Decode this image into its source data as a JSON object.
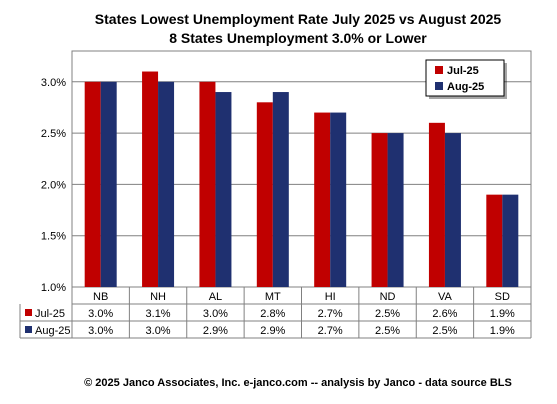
{
  "chart_data": {
    "type": "bar",
    "title": "States Lowest Unemployment Rate July 2025 vs August 2025",
    "subtitle": "8 States  Unemployment 3.0% or Lower",
    "categories": [
      "NB",
      "NH",
      "AL",
      "MT",
      "HI",
      "ND",
      "VA",
      "SD"
    ],
    "series": [
      {
        "name": "Jul-25",
        "color": "#C00000",
        "values": [
          3.0,
          3.1,
          3.0,
          2.8,
          2.7,
          2.5,
          2.6,
          1.9
        ]
      },
      {
        "name": "Aug-25",
        "color": "#1F3070",
        "values": [
          3.0,
          3.0,
          2.9,
          2.9,
          2.7,
          2.5,
          2.5,
          1.9
        ]
      }
    ],
    "table_values": [
      [
        "3.0%",
        "3.1%",
        "3.0%",
        "2.8%",
        "2.7%",
        "2.5%",
        "2.6%",
        "1.9%"
      ],
      [
        "3.0%",
        "3.0%",
        "2.9%",
        "2.9%",
        "2.7%",
        "2.5%",
        "2.5%",
        "1.9%"
      ]
    ],
    "yticks": [
      1.0,
      1.5,
      2.0,
      2.5,
      3.0
    ],
    "ytick_labels": [
      "1.0%",
      "1.5%",
      "2.0%",
      "2.5%",
      "3.0%"
    ],
    "ylim": [
      1.0,
      3.3
    ],
    "grid": true,
    "legend": "top-right",
    "data_table": true,
    "xlabel": "",
    "ylabel": ""
  },
  "footer": "© 2025 Janco Associates, Inc. e-janco.com -- analysis by Janco - data source BLS"
}
